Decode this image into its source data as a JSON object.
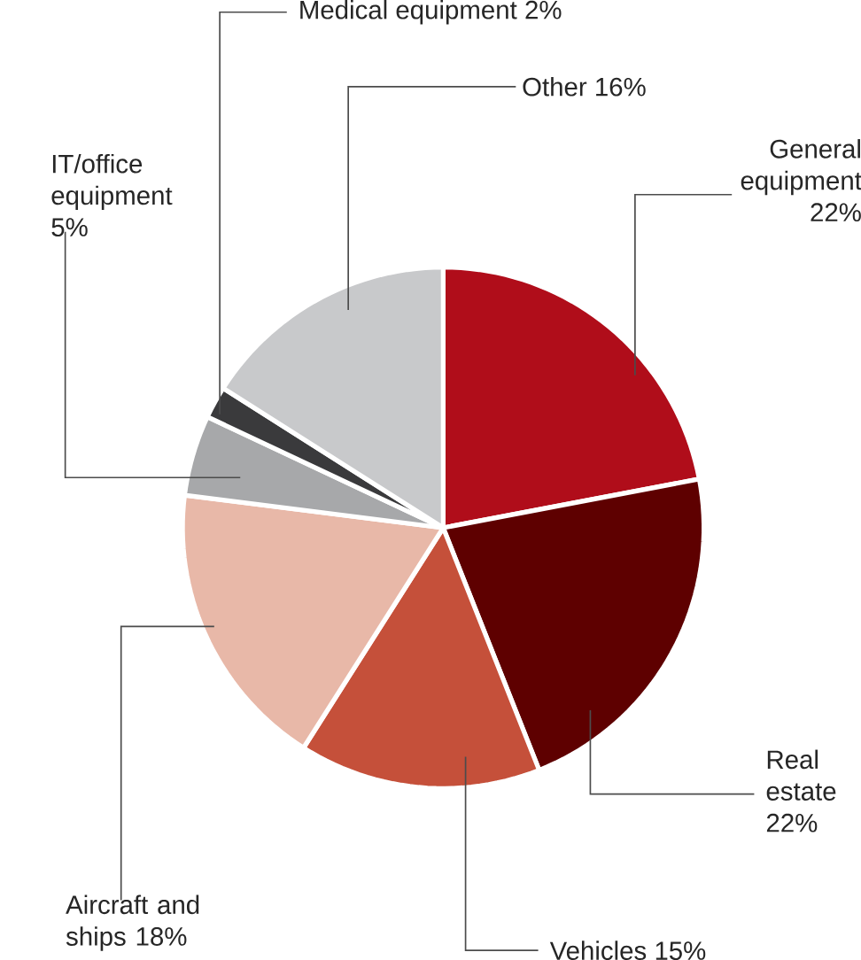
{
  "chart_data": {
    "type": "pie",
    "categories": [
      "General equipment",
      "Real estate",
      "Vehicles",
      "Aircraft and ships",
      "IT/office equipment",
      "Medical equipment",
      "Other"
    ],
    "values": [
      22,
      22,
      15,
      18,
      5,
      2,
      16
    ],
    "value_labels": [
      "22%",
      "22%",
      "15%",
      "18%",
      "5%",
      "2%",
      "16%"
    ],
    "colors": [
      "#b00d1a",
      "#5e0000",
      "#c5503a",
      "#e8b8a8",
      "#a7a8aa",
      "#3a3a3c",
      "#c8c9cb"
    ]
  }
}
